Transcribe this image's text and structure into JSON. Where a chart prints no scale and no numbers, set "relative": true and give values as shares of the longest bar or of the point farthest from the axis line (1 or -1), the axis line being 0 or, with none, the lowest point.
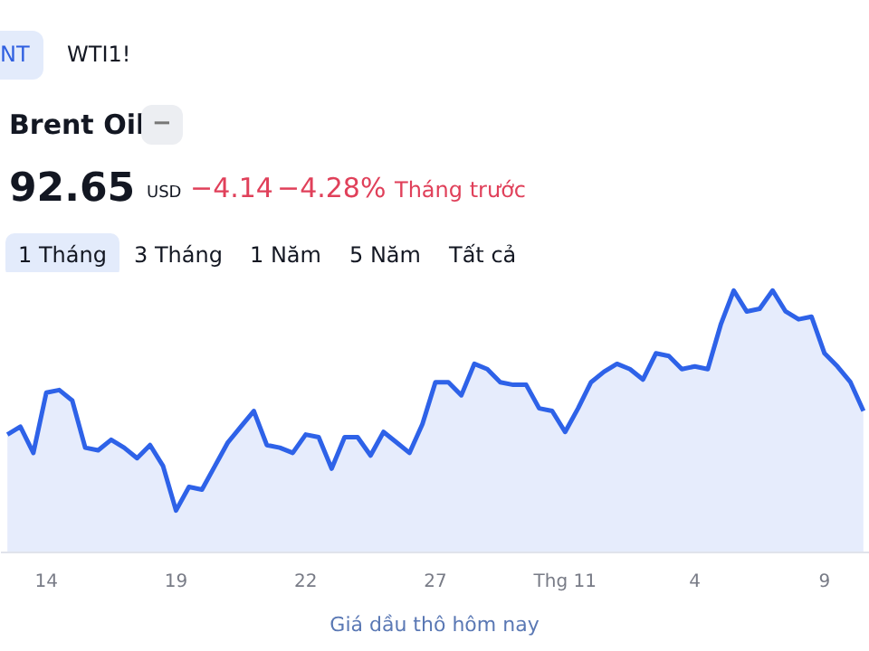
{
  "chart_data": {
    "type": "area",
    "title": "Brent Oil",
    "relative": true,
    "categories": [
      null,
      null,
      null,
      "14",
      null,
      null,
      null,
      null,
      null,
      null,
      null,
      null,
      null,
      "19",
      null,
      null,
      null,
      null,
      null,
      null,
      null,
      null,
      null,
      "22",
      null,
      null,
      null,
      null,
      null,
      null,
      null,
      null,
      null,
      "27",
      null,
      null,
      null,
      null,
      null,
      null,
      null,
      null,
      null,
      "Thg 11",
      null,
      null,
      null,
      null,
      null,
      null,
      null,
      null,
      null,
      "4",
      null,
      null,
      null,
      null,
      null,
      null,
      null,
      null,
      null,
      "9",
      null,
      null,
      null
    ],
    "series": [
      {
        "color": "#2e62e8",
        "values": [
          0.45,
          0.48,
          0.38,
          0.61,
          0.62,
          0.58,
          0.4,
          0.39,
          0.43,
          0.4,
          0.36,
          0.41,
          0.33,
          0.16,
          0.25,
          0.24,
          0.33,
          0.42,
          0.48,
          0.54,
          0.41,
          0.4,
          0.38,
          0.45,
          0.44,
          0.32,
          0.44,
          0.44,
          0.37,
          0.46,
          0.42,
          0.38,
          0.49,
          0.65,
          0.65,
          0.6,
          0.72,
          0.7,
          0.65,
          0.64,
          0.64,
          0.55,
          0.54,
          0.46,
          0.55,
          0.65,
          0.69,
          0.72,
          0.7,
          0.66,
          0.76,
          0.75,
          0.7,
          0.71,
          0.7,
          0.87,
          1.0,
          0.92,
          0.93,
          1.0,
          0.92,
          0.89,
          0.9,
          0.76,
          0.71,
          0.65,
          0.54
        ]
      }
    ],
    "annotations": [
      "NT",
      "WTI1!",
      "−",
      "92.65",
      "USD",
      "−4.14",
      "−4.28%",
      "Tháng trước",
      "1 Tháng",
      "3 Tháng",
      "1 Năm",
      "5 Năm",
      "Tất cả",
      "Giá dầu thô hôm nay"
    ]
  }
}
